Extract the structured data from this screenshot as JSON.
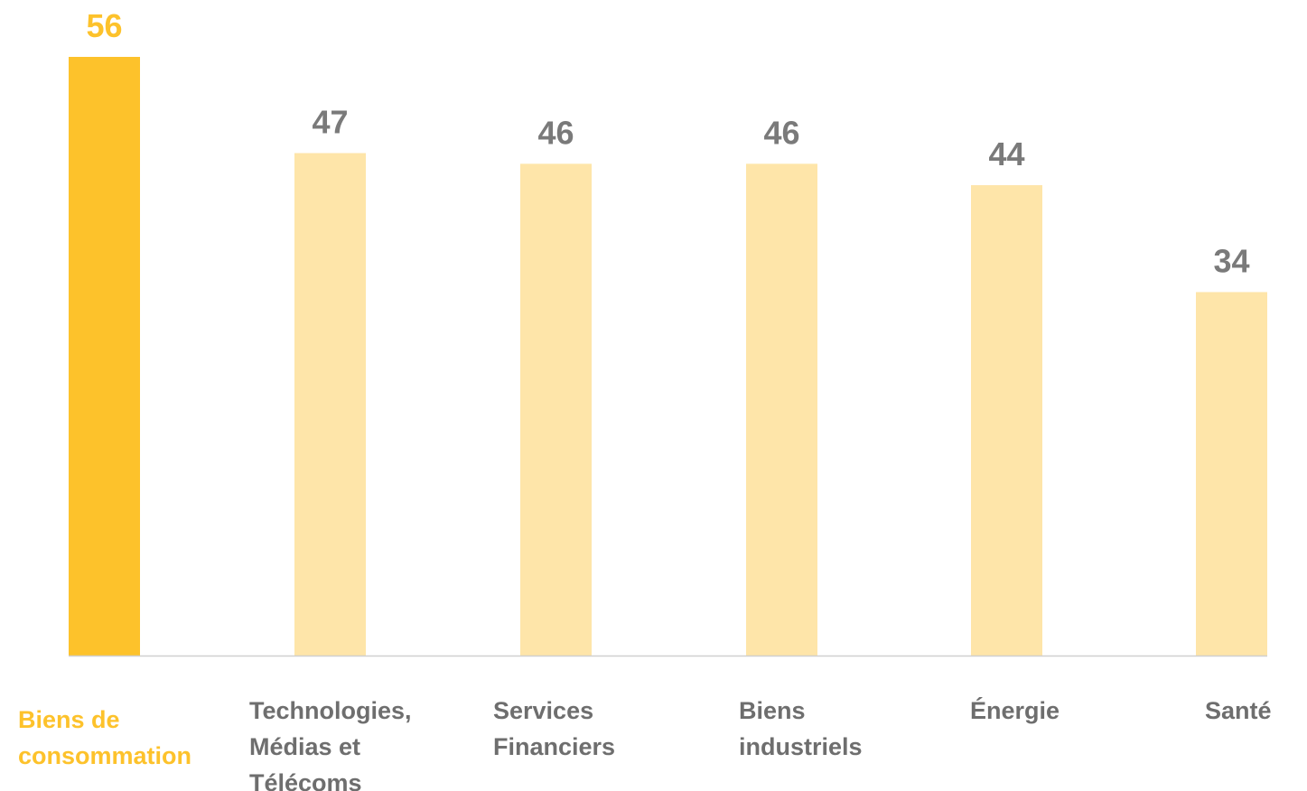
{
  "chart_data": {
    "type": "bar",
    "title": "",
    "xlabel": "",
    "ylabel": "",
    "ylim": [
      0,
      56
    ],
    "grid": false,
    "legend": "none",
    "categories": [
      [
        "Biens de",
        "consommation"
      ],
      [
        "Technologies,",
        "Médias et",
        "Télécoms"
      ],
      [
        "Services",
        "Financiers"
      ],
      [
        "Biens",
        "industriels"
      ],
      [
        "Énergie"
      ],
      [
        "Santé"
      ]
    ],
    "values": [
      56,
      47,
      46,
      46,
      44,
      34
    ],
    "highlight_index": 0
  },
  "colors": {
    "highlight_bar": "#FDC22B",
    "bar": "#FEE5A9",
    "highlight_text": "#FDC22B",
    "value_text": "#7A7A7A",
    "category_text": "#6E6E6E",
    "axis": "#D0D0D0"
  }
}
